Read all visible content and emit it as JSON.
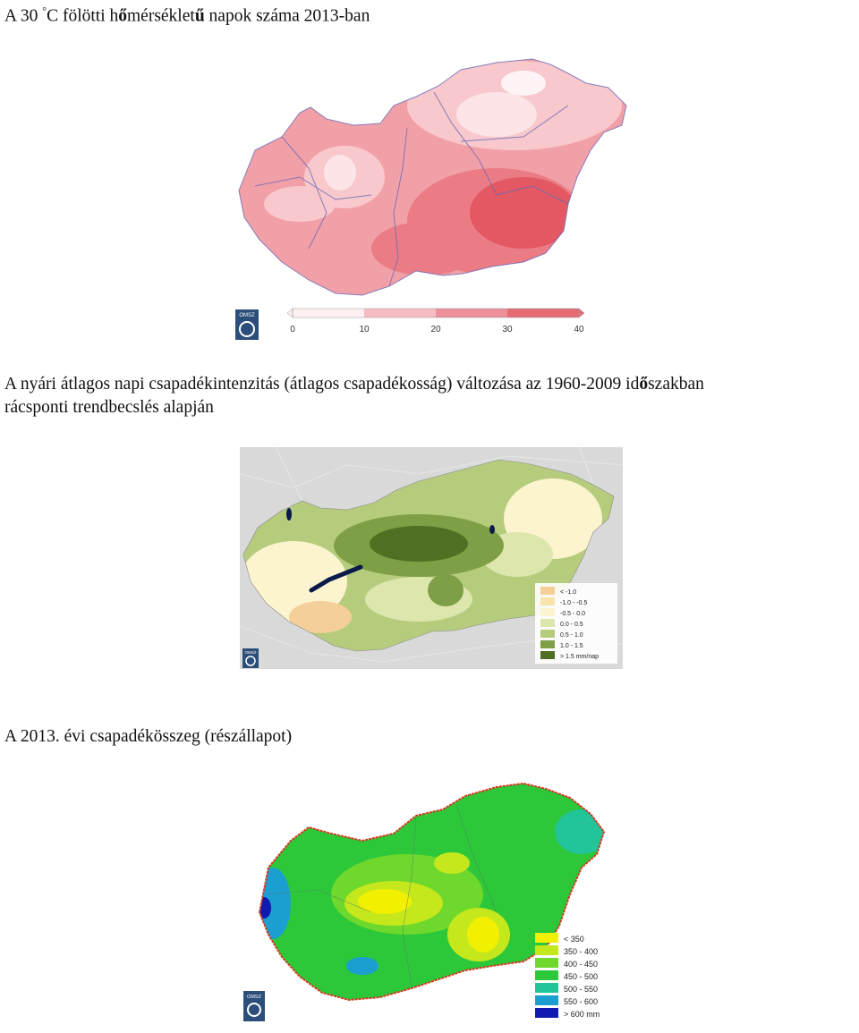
{
  "colors": {
    "temp_scale": [
      "#ffffff",
      "#f8c8cc",
      "#f2a0a7",
      "#eb7c85",
      "#e35863"
    ],
    "trend_scale": [
      "#f5cf9a",
      "#f8e3ad",
      "#fbf4cf",
      "#dde6ad",
      "#b5cc7d",
      "#7f9f46",
      "#4f6f22"
    ],
    "precip_scale": [
      "#f0f000",
      "#c4e81c",
      "#6fd82c",
      "#2cc83a",
      "#22c49a",
      "#1a9fd0",
      "#101ab0"
    ]
  },
  "fig1": {
    "caption_parts": [
      "A 30 ",
      "°",
      "C fölötti h",
      "ő",
      "mérséklet",
      "ű",
      " napok száma 2013-ban"
    ],
    "logo_text": "OMSZ",
    "scale_ticks": [
      "0",
      "10",
      "20",
      "30",
      "40"
    ]
  },
  "fig2": {
    "caption_line1_parts": [
      "A nyári átlagos napi csapadékintenzitás (átlagos csapadékosság) változása az 1960-2009 id",
      "ő",
      "szakban"
    ],
    "caption_line2": "rácsponti trendbecslés alapján",
    "logo_text": "OMSZ",
    "legend": [
      "< -1.0",
      "-1.0 - -0.5",
      "-0.5 - 0.0",
      "0.0 - 0.5",
      "0.5 - 1.0",
      "1.0 - 1.5",
      "> 1.5 mm/nap"
    ]
  },
  "fig3": {
    "caption": "A 2013. évi csapadékösszeg (részállapot)",
    "logo_text": "OMSZ",
    "legend": [
      "< 350",
      "350 - 400",
      "400 - 450",
      "450 - 500",
      "500 - 550",
      "550 - 600",
      "> 600 mm"
    ]
  }
}
